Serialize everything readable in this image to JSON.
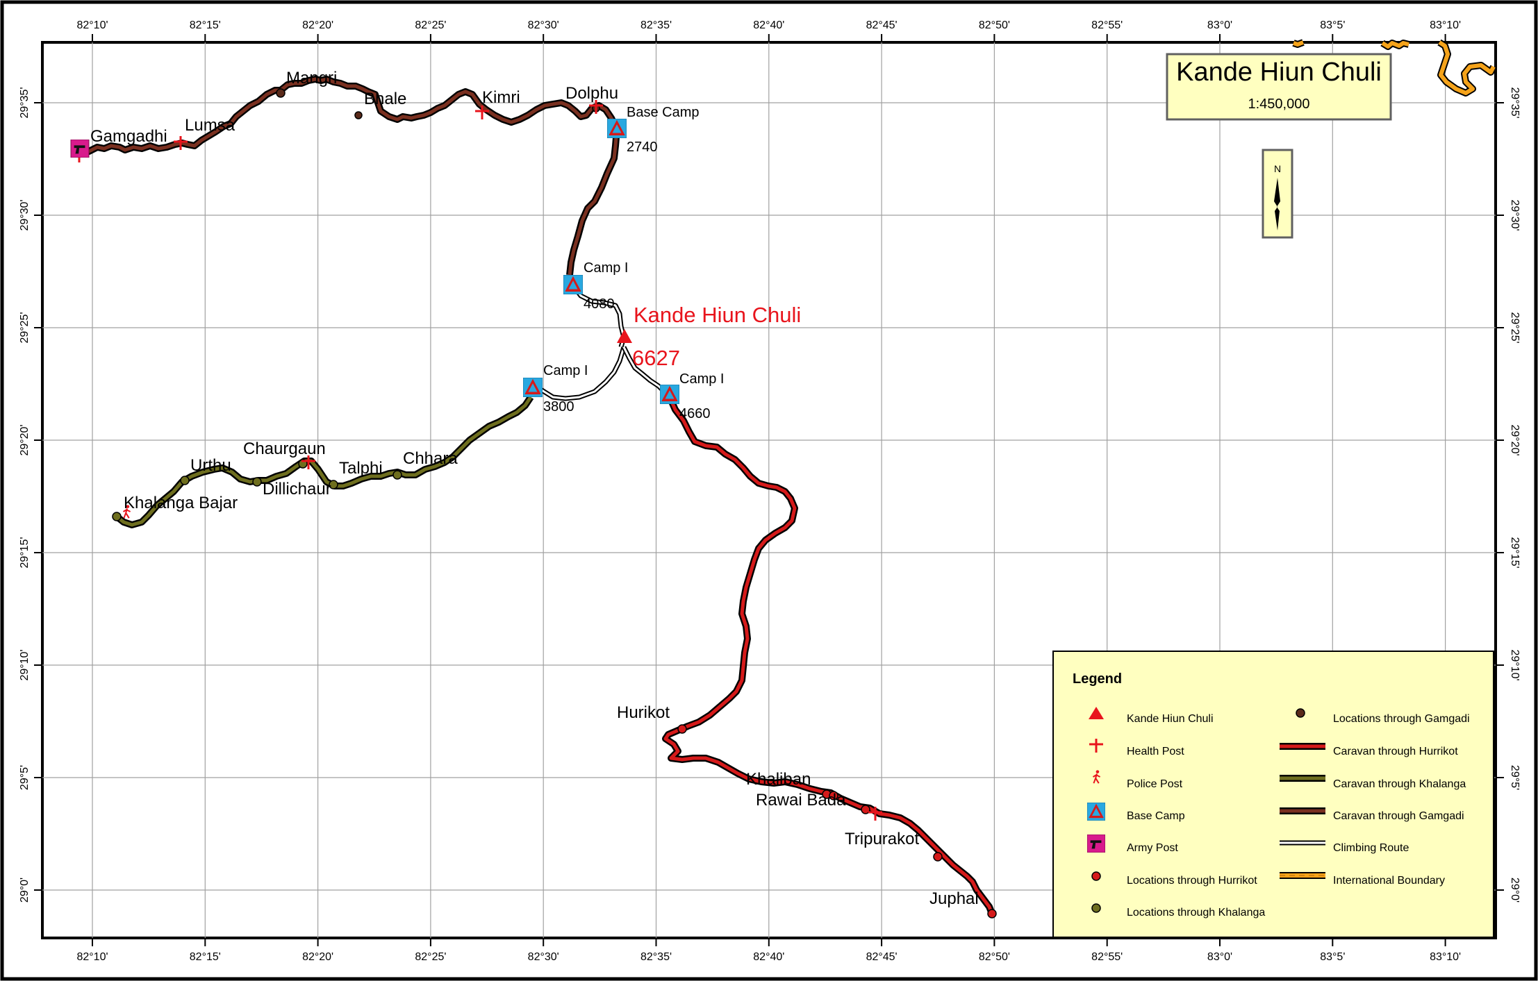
{
  "title": "Kande Hiun Chuli",
  "scale": "1:450,000",
  "north_label": "N",
  "axis_labels": {
    "top_bottom": [
      "82°10'",
      "82°15'",
      "82°20'",
      "82°25'",
      "82°30'",
      "82°35'",
      "82°40'",
      "82°45'",
      "82°50'",
      "82°55'",
      "83°0'",
      "83°5'",
      "83°10'"
    ],
    "left_right": [
      "29°35'",
      "29°30'",
      "29°25'",
      "29°20'",
      "29°15'",
      "29°10'",
      "29°5'",
      "29°0'"
    ]
  },
  "peak": {
    "name": "Kande Hiun Chuli",
    "elevation": "6627"
  },
  "base_camp": {
    "label": "Base Camp",
    "elevation": "2740"
  },
  "camps": [
    {
      "label": "Camp I",
      "elevation": "4080"
    },
    {
      "label": "Camp I",
      "elevation": "3800"
    },
    {
      "label": "Camp I",
      "elevation": "4660"
    }
  ],
  "places": {
    "gamgadhi": "Gamgadhi",
    "lumsa": "Lumsa",
    "mangri": "Mangri",
    "bhale": "Bhale",
    "kimri": "Kimri",
    "dolphu": "Dolphu",
    "chaurgaun": "Chaurgaun",
    "urthu": "Urthu",
    "talphi": "Talphi",
    "chhara": "Chhara",
    "dillichaur": "Dillichaur",
    "khalanga_bajar": "Khalanga Bajar",
    "hurikot": "Hurikot",
    "khaliban": "Khaliban",
    "rawai_bada": "Rawai Bada",
    "tripurakot": "Tripurakot",
    "juphal": "Juphal"
  },
  "legend": {
    "title": "Legend",
    "items": [
      {
        "label": "Kande Hiun Chuli",
        "symbol": "peak-icon"
      },
      {
        "label": "Health Post",
        "symbol": "health-post-icon"
      },
      {
        "label": "Police Post",
        "symbol": "police-post-icon"
      },
      {
        "label": "Base Camp",
        "symbol": "base-camp-icon"
      },
      {
        "label": "Army Post",
        "symbol": "army-post-icon"
      },
      {
        "label": "Locations through Hurrikot",
        "symbol": "red-dot-icon"
      },
      {
        "label": "Locations through Khalanga",
        "symbol": "olive-dot-icon"
      },
      {
        "label": "Locations through Gamgadi",
        "symbol": "brown-dot-icon"
      },
      {
        "label": "Caravan through Hurrikot",
        "symbol": "red-route-line"
      },
      {
        "label": "Caravan through Khalanga",
        "symbol": "olive-route-line"
      },
      {
        "label": "Caravan through Gamgadi",
        "symbol": "brown-route-line"
      },
      {
        "label": "Climbing Route",
        "symbol": "climbing-route-line"
      },
      {
        "label": "International Boundary",
        "symbol": "international-boundary-line"
      }
    ]
  },
  "colors": {
    "hurikot_route": "#d51a1a",
    "khalanga_route": "#6e6e1e",
    "gamgadi_route": "#7a3020",
    "boundary": "#f5a31a",
    "panel_fill": "#ffffc0",
    "camp_fill": "#29a8e0",
    "army_fill": "#d81b8c",
    "peak_red": "#e8141c"
  }
}
